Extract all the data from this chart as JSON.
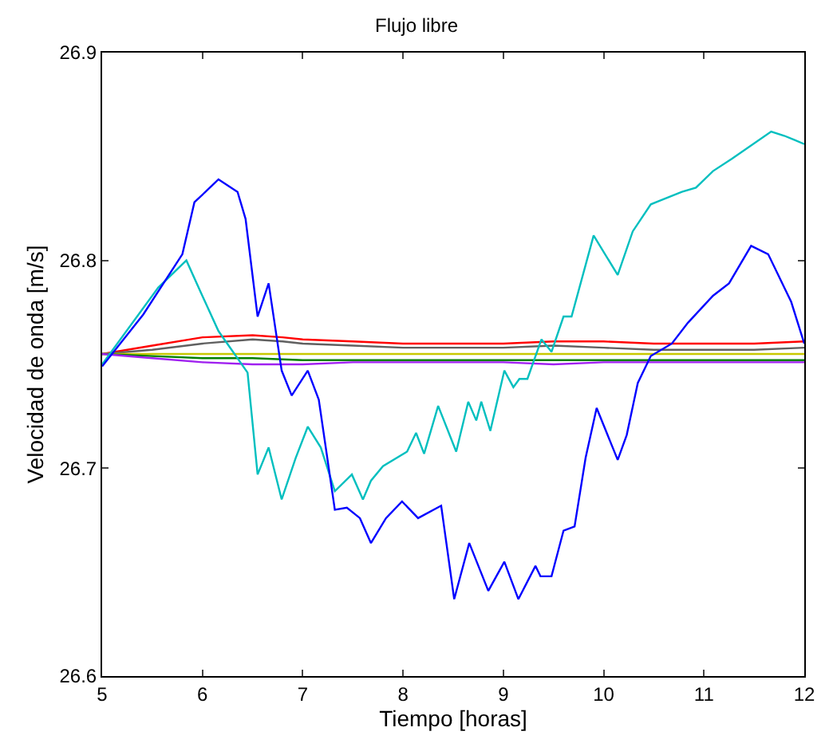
{
  "chart_data": {
    "type": "line",
    "title": "Flujo libre",
    "xlabel": "Tiempo [horas]",
    "ylabel": "Velocidad de onda [m/s]",
    "xlim": [
      5,
      12
    ],
    "ylim": [
      26.6,
      26.9
    ],
    "xticks": [
      5,
      6,
      7,
      8,
      9,
      10,
      11,
      12
    ],
    "yticks": [
      26.6,
      26.7,
      26.8,
      26.9
    ],
    "marker": "none",
    "line_style": "solid",
    "series": [
      {
        "color": "#ff0000",
        "x": [
          5,
          5.5,
          6,
          6.5,
          6.8,
          7,
          7.5,
          8,
          8.5,
          9,
          9.5,
          10,
          10.5,
          11,
          11.5,
          12
        ],
        "values": [
          26.755,
          26.759,
          26.763,
          26.764,
          26.763,
          26.762,
          26.761,
          26.76,
          26.76,
          26.76,
          26.761,
          26.761,
          26.76,
          26.76,
          26.76,
          26.761
        ]
      },
      {
        "color": "#606060",
        "x": [
          5,
          5.5,
          6,
          6.5,
          6.8,
          7,
          7.5,
          8,
          8.5,
          9,
          9.5,
          10,
          10.5,
          11,
          11.5,
          12
        ],
        "values": [
          26.755,
          26.757,
          26.76,
          26.762,
          26.761,
          26.76,
          26.759,
          26.758,
          26.758,
          26.758,
          26.759,
          26.758,
          26.757,
          26.757,
          26.757,
          26.758
        ]
      },
      {
        "color": "#c8c800",
        "x": [
          5,
          12
        ],
        "values": [
          26.755,
          26.755
        ]
      },
      {
        "color": "#008000",
        "x": [
          5,
          5.5,
          6,
          6.5,
          7,
          8,
          9,
          10,
          11,
          12
        ],
        "values": [
          26.755,
          26.754,
          26.753,
          26.753,
          26.752,
          26.752,
          26.752,
          26.752,
          26.752,
          26.752
        ]
      },
      {
        "color": "#a020f0",
        "x": [
          5,
          5.5,
          6,
          6.5,
          7,
          7.5,
          8,
          8.5,
          9,
          9.5,
          10,
          10.5,
          11,
          11.5,
          12
        ],
        "values": [
          26.755,
          26.753,
          26.751,
          26.75,
          26.75,
          26.751,
          26.751,
          26.751,
          26.751,
          26.75,
          26.751,
          26.751,
          26.751,
          26.751,
          26.751
        ]
      },
      {
        "color": "#00bfbf",
        "x": [
          5,
          5.56,
          5.84,
          5.98,
          6.16,
          6.45,
          6.55,
          6.66,
          6.79,
          6.93,
          7.05,
          7.18,
          7.32,
          7.49,
          7.6,
          7.68,
          7.8,
          8.04,
          8.13,
          8.21,
          8.35,
          8.53,
          8.65,
          8.73,
          8.78,
          8.87,
          9.01,
          9.1,
          9.16,
          9.24,
          9.38,
          9.48,
          9.6,
          9.68,
          9.9,
          10.14,
          10.29,
          10.47,
          10.78,
          10.92,
          11.09,
          11.28,
          11.67,
          11.8,
          11.9,
          12
        ],
        "values": [
          26.75,
          26.787,
          26.8,
          26.785,
          26.766,
          26.746,
          26.697,
          26.71,
          26.685,
          26.705,
          26.72,
          26.71,
          26.689,
          26.697,
          26.685,
          26.694,
          26.701,
          26.708,
          26.717,
          26.707,
          26.73,
          26.708,
          26.732,
          26.723,
          26.732,
          26.718,
          26.747,
          26.739,
          26.743,
          26.743,
          26.762,
          26.756,
          26.773,
          26.773,
          26.812,
          26.793,
          26.814,
          26.827,
          26.833,
          26.835,
          26.843,
          26.849,
          26.862,
          26.86,
          26.858,
          26.856
        ]
      },
      {
        "color": "#0000ff",
        "x": [
          5,
          5.41,
          5.8,
          5.92,
          6.03,
          6.16,
          6.35,
          6.43,
          6.55,
          6.66,
          6.79,
          6.89,
          7.05,
          7.16,
          7.32,
          7.44,
          7.57,
          7.68,
          7.83,
          7.99,
          8.15,
          8.38,
          8.51,
          8.66,
          8.85,
          9.01,
          9.15,
          9.32,
          9.37,
          9.48,
          9.6,
          9.71,
          9.82,
          9.93,
          10.14,
          10.23,
          10.34,
          10.47,
          10.68,
          10.84,
          11.09,
          11.25,
          11.47,
          11.64,
          11.87,
          12
        ],
        "values": [
          26.749,
          26.774,
          26.803,
          26.828,
          26.833,
          26.839,
          26.833,
          26.82,
          26.773,
          26.789,
          26.747,
          26.735,
          26.747,
          26.733,
          26.68,
          26.681,
          26.676,
          26.664,
          26.676,
          26.684,
          26.676,
          26.682,
          26.637,
          26.664,
          26.641,
          26.655,
          26.637,
          26.653,
          26.648,
          26.648,
          26.67,
          26.672,
          26.705,
          26.729,
          26.704,
          26.716,
          26.741,
          26.754,
          26.76,
          26.77,
          26.783,
          26.789,
          26.807,
          26.803,
          26.78,
          26.76
        ]
      }
    ]
  }
}
